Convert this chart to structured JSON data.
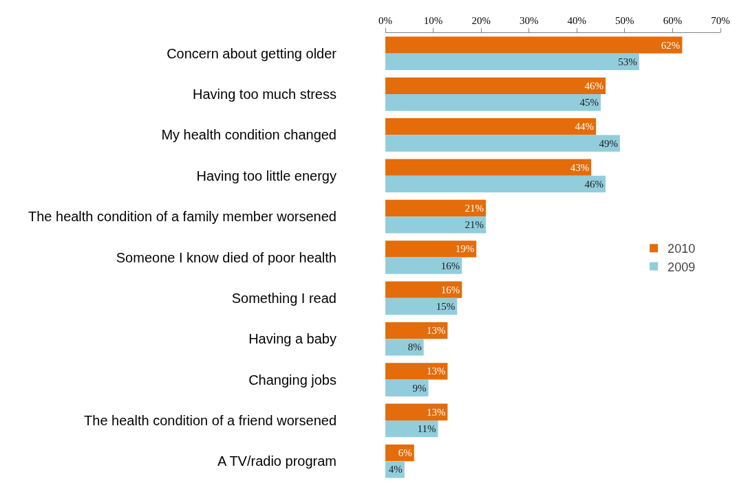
{
  "chart_data": {
    "type": "bar",
    "orientation": "horizontal",
    "categories": [
      "Concern about getting older",
      "Having too much stress",
      "My health condition changed",
      "Having too little energy",
      "The health condition of a family member worsened",
      "Someone I know died of poor health",
      "Something I read",
      "Having a baby",
      "Changing jobs",
      "The health condition of a friend worsened",
      "A TV/radio program"
    ],
    "series": [
      {
        "name": "2010",
        "color": "#e46c0a",
        "values": [
          62,
          46,
          44,
          43,
          21,
          19,
          16,
          13,
          13,
          13,
          6
        ],
        "value_labels": [
          "62%",
          "46%",
          "44%",
          "43%",
          "21%",
          "19%",
          "16%",
          "13%",
          "13%",
          "13%",
          "6%"
        ]
      },
      {
        "name": "2009",
        "color": "#92cddc",
        "values": [
          53,
          45,
          49,
          46,
          21,
          16,
          15,
          8,
          9,
          11,
          4
        ],
        "value_labels": [
          "53%",
          "45%",
          "49%",
          "46%",
          "21%",
          "16%",
          "15%",
          "8%",
          "9%",
          "11%",
          "4%"
        ]
      }
    ],
    "xlim": [
      0,
      70
    ],
    "xticks": [
      {
        "value": 0,
        "label": "0%"
      },
      {
        "value": 10,
        "label": "10%"
      },
      {
        "value": 20,
        "label": "20%"
      },
      {
        "value": 30,
        "label": "30%"
      },
      {
        "value": 40,
        "label": "40%"
      },
      {
        "value": 50,
        "label": "50%"
      },
      {
        "value": 60,
        "label": "60%"
      },
      {
        "value": 70,
        "label": "70%"
      }
    ],
    "grid": false,
    "legend": "right"
  }
}
